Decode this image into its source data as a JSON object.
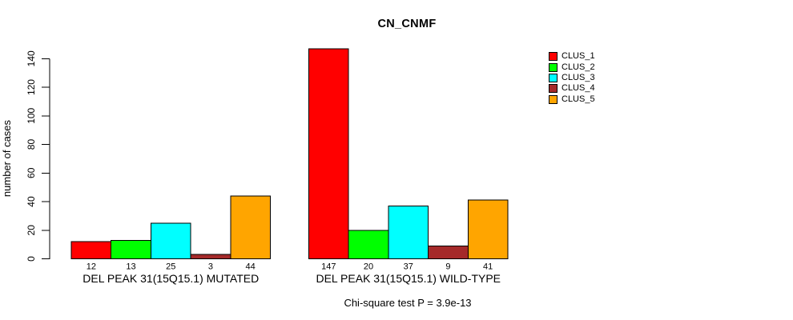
{
  "figure": {
    "title": "CN_CNMF",
    "ylabel": "number of cases",
    "footer": "Chi-square test P = 3.9e-13"
  },
  "legend": {
    "position": "top-right",
    "items": [
      {
        "label": "CLUS_1",
        "color": "#FF0000"
      },
      {
        "label": "CLUS_2",
        "color": "#00FF00"
      },
      {
        "label": "CLUS_3",
        "color": "#00FFFF"
      },
      {
        "label": "CLUS_4",
        "color": "#A52A2A"
      },
      {
        "label": "CLUS_5",
        "color": "#FFA500"
      }
    ]
  },
  "chart_data": {
    "type": "bar",
    "title": "CN_CNMF",
    "ylabel": "number of cases",
    "xlabel": "",
    "ylim": [
      0,
      140
    ],
    "yticks": [
      0,
      20,
      40,
      60,
      80,
      100,
      120,
      140
    ],
    "grid": false,
    "legend_position": "top-right",
    "series_names": [
      "CLUS_1",
      "CLUS_2",
      "CLUS_3",
      "CLUS_4",
      "CLUS_5"
    ],
    "series_colors": [
      "#FF0000",
      "#00FF00",
      "#00FFFF",
      "#A52A2A",
      "#FFA500"
    ],
    "bar_border_color": "#000000",
    "groups": [
      {
        "label": "DEL PEAK 31(15Q15.1) MUTATED",
        "values": [
          12,
          13,
          25,
          3,
          44
        ]
      },
      {
        "label": "DEL PEAK 31(15Q15.1) WILD-TYPE",
        "values": [
          147,
          20,
          37,
          9,
          41
        ]
      }
    ],
    "bar_value_labels": true,
    "annotation": "Chi-square test P = 3.9e-13"
  }
}
